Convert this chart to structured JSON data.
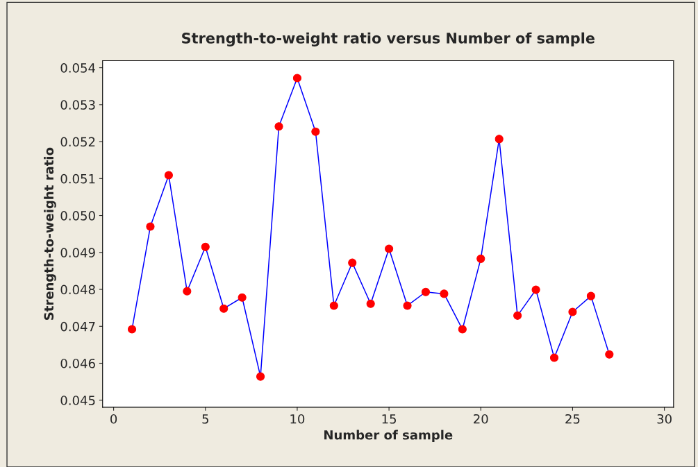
{
  "chart_data": {
    "type": "line",
    "title": "Strength-to-weight ratio versus Number of sample",
    "xlabel": "Number of sample",
    "ylabel": "Strength-to-weight ratio",
    "x": [
      1,
      2,
      3,
      4,
      5,
      6,
      7,
      8,
      9,
      10,
      11,
      12,
      13,
      14,
      15,
      16,
      17,
      18,
      19,
      20,
      21,
      22,
      23,
      24,
      25,
      26,
      27
    ],
    "series": [
      {
        "color": "#0000ff",
        "values": [
          0.04692,
          0.0497,
          0.05109,
          0.04795,
          0.04915,
          0.04748,
          0.04778,
          0.04564,
          0.05241,
          0.05372,
          0.05227,
          0.04756,
          0.04872,
          0.04761,
          0.0491,
          0.04756,
          0.04793,
          0.04788,
          0.04692,
          0.04883,
          0.05207,
          0.04729,
          0.04799,
          0.04615,
          0.04739,
          0.04782,
          0.04624
        ]
      }
    ],
    "marker": "circle",
    "line_style": "solid",
    "grid": false,
    "legend": false,
    "xlim": [
      -0.6,
      30.5
    ],
    "xticks": [
      0,
      5,
      10,
      15,
      20,
      25,
      30
    ],
    "ylim": [
      0.04481,
      0.05419
    ],
    "yticks": [
      {
        "value": 0.045,
        "label": "0.045"
      },
      {
        "value": 0.046,
        "label": "0.046"
      },
      {
        "value": 0.047,
        "label": "0.047"
      },
      {
        "value": 0.048,
        "label": "0.048"
      },
      {
        "value": 0.049,
        "label": "0.049"
      },
      {
        "value": 0.05,
        "label": "0.050"
      },
      {
        "value": 0.051,
        "label": "0.051"
      },
      {
        "value": 0.052,
        "label": "0.052"
      },
      {
        "value": 0.053,
        "label": "0.053"
      },
      {
        "value": 0.054,
        "label": "0.054"
      }
    ]
  }
}
